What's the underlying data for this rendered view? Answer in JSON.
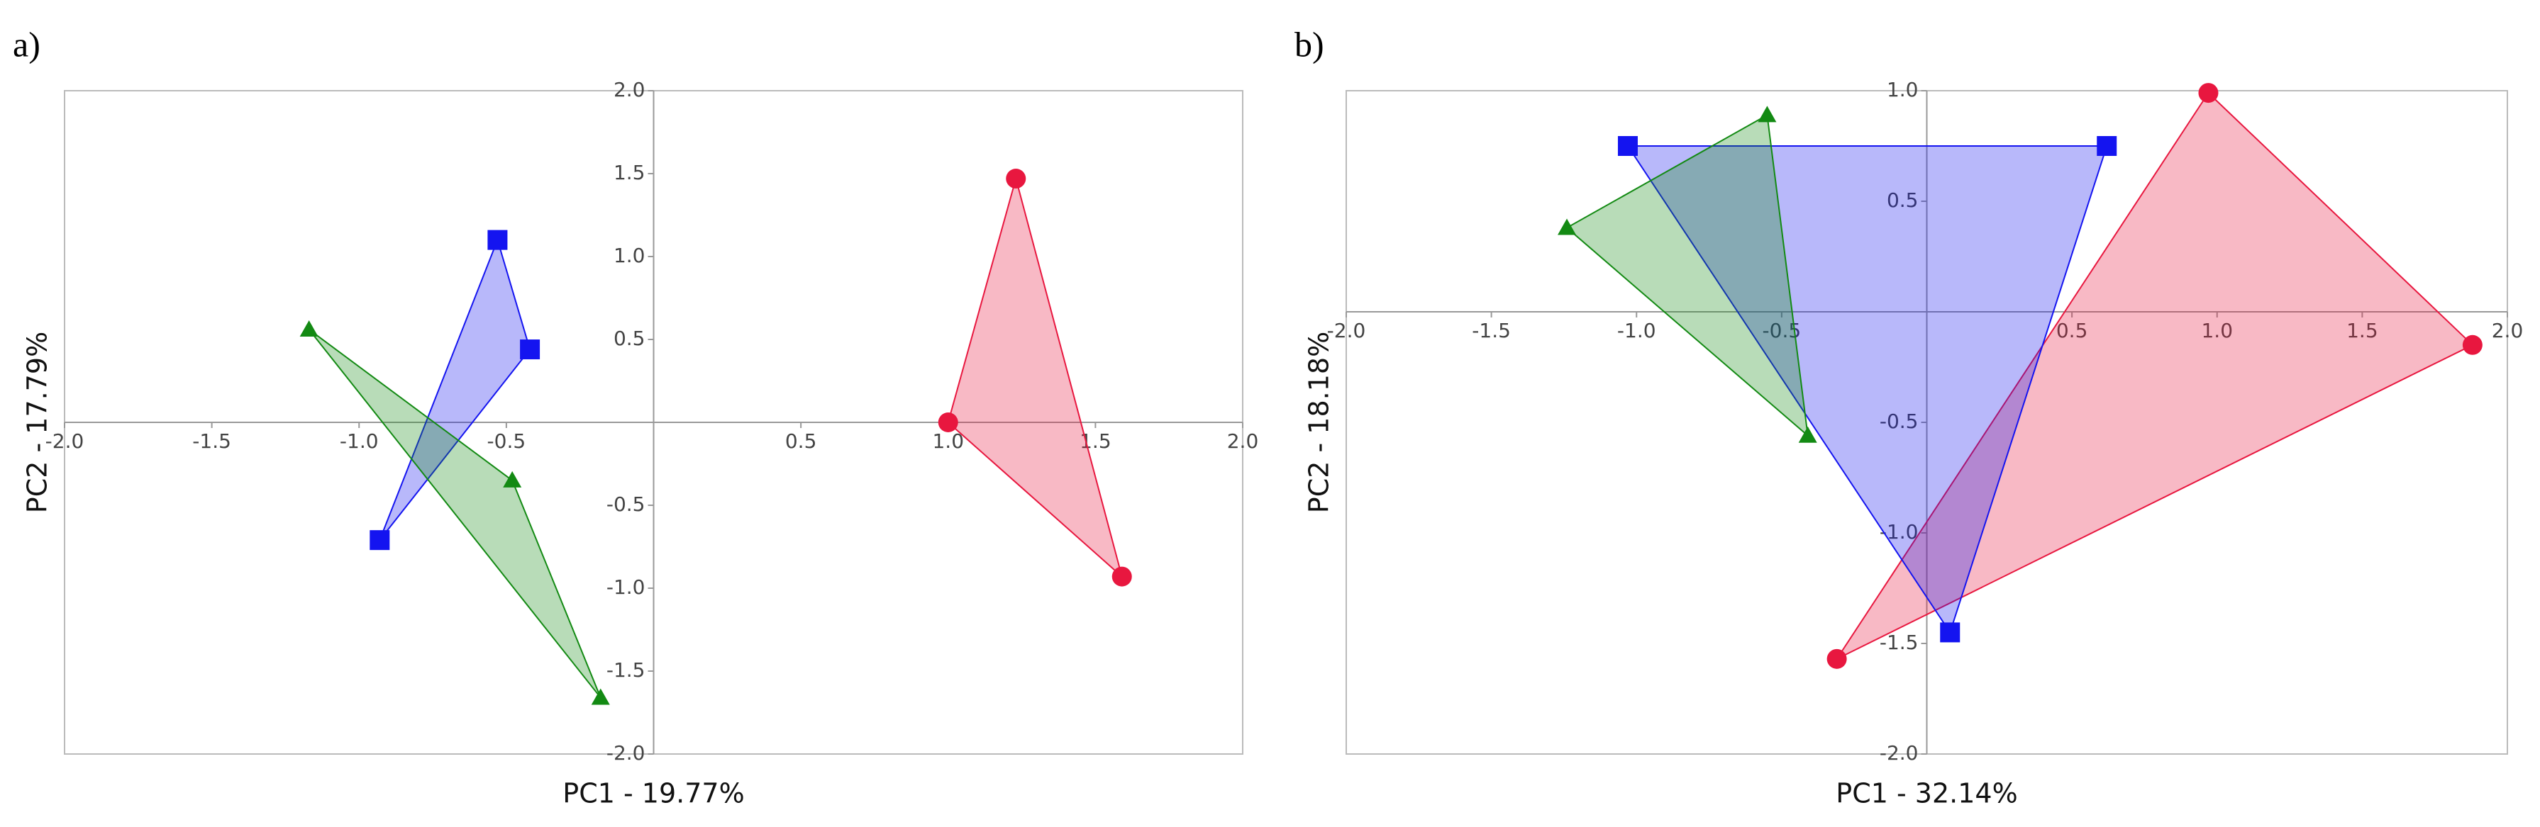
{
  "chart_data": [
    {
      "type": "scatter",
      "panel_label": "a)",
      "x_label": "PC1 - 19.77%",
      "y_label": "PC2 - 17.79%",
      "xlim": [
        -2,
        2
      ],
      "ylim": [
        -2,
        2
      ],
      "xticks": [
        {
          "value": -2,
          "label": "-2.0"
        },
        -1.5,
        {
          "value": -1,
          "label": "-1.0"
        },
        -0.5,
        0.5,
        {
          "value": 1,
          "label": "1.0"
        },
        1.5,
        {
          "value": 2,
          "label": "2.0"
        }
      ],
      "yticks": [
        {
          "value": -2,
          "label": "-2.0"
        },
        -1.5,
        {
          "value": -1,
          "label": "-1.0"
        },
        -0.5,
        0.5,
        {
          "value": 1,
          "label": "1.0"
        },
        1.5,
        {
          "value": 2,
          "label": "2.0"
        }
      ],
      "series": [
        {
          "color": "#e8173f",
          "marker": "circle",
          "x": [
            1.0,
            1.23,
            1.59
          ],
          "y": [
            0.0,
            1.47,
            -0.93
          ]
        },
        {
          "color": "#1414f0",
          "marker": "square",
          "x": [
            -0.53,
            -0.42,
            -0.93
          ],
          "y": [
            1.1,
            0.44,
            -0.71
          ]
        },
        {
          "color": "#138a13",
          "marker": "triangle",
          "x": [
            -1.17,
            -0.48,
            -0.18
          ],
          "y": [
            0.56,
            -0.35,
            -1.66
          ]
        }
      ]
    },
    {
      "type": "scatter",
      "panel_label": "b)",
      "x_label": "PC1 - 32.14%",
      "y_label": "PC2 - 18.18%",
      "xlim": [
        -2,
        2
      ],
      "ylim": [
        -2,
        1
      ],
      "xticks": [
        {
          "value": -2,
          "label": "-2.0"
        },
        -1.5,
        {
          "value": -1,
          "label": "-1.0"
        },
        -0.5,
        0.5,
        {
          "value": 1,
          "label": "1.0"
        },
        1.5,
        {
          "value": 2,
          "label": "2.0"
        }
      ],
      "yticks": [
        {
          "value": -2,
          "label": "-2.0"
        },
        -1.5,
        {
          "value": -1,
          "label": "-1.0"
        },
        -0.5,
        0.5,
        {
          "value": 1,
          "label": "1.0"
        }
      ],
      "series": [
        {
          "color": "#e8173f",
          "marker": "circle",
          "x": [
            0.97,
            1.88,
            -0.31
          ],
          "y": [
            0.99,
            -0.15,
            -1.57
          ]
        },
        {
          "color": "#1414f0",
          "marker": "square",
          "x": [
            -1.03,
            0.62,
            0.08
          ],
          "y": [
            0.75,
            0.75,
            -1.45
          ]
        },
        {
          "color": "#138a13",
          "marker": "triangle",
          "x": [
            -0.55,
            -1.24,
            -0.41
          ],
          "y": [
            0.89,
            0.38,
            -0.56
          ]
        }
      ]
    }
  ]
}
